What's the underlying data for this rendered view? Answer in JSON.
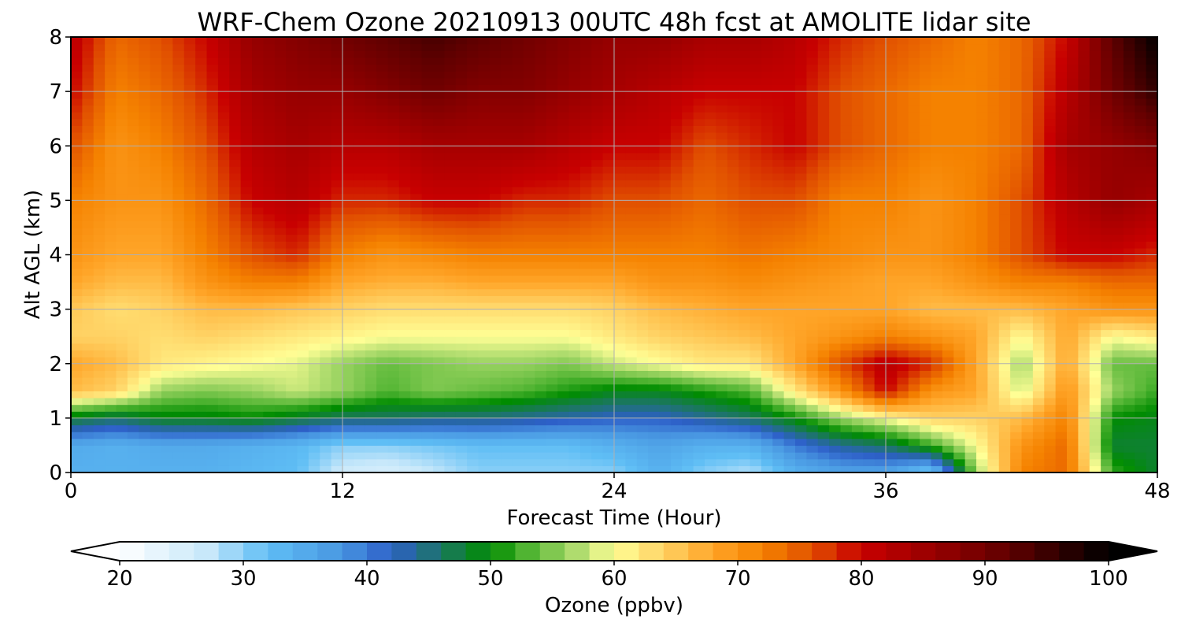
{
  "chart_data": {
    "type": "heatmap",
    "title": "WRF-Chem Ozone  20210913 00UTC 48h fcst at AMOLITE lidar site",
    "xlabel": "Forecast Time (Hour)",
    "ylabel": "Alt AGL (km)",
    "xlim": [
      0,
      48
    ],
    "ylim": [
      0,
      8
    ],
    "x_ticks": [
      "0",
      "12",
      "24",
      "36",
      "48"
    ],
    "y_ticks": [
      "0",
      "1",
      "2",
      "3",
      "4",
      "5",
      "6",
      "7",
      "8"
    ],
    "grid": true,
    "colorbar": {
      "label": "Ozone  (ppbv)",
      "range": [
        20,
        100
      ],
      "step": 2,
      "extend": "both",
      "ticks": [
        "20",
        "30",
        "40",
        "50",
        "60",
        "70",
        "80",
        "90",
        "100"
      ]
    },
    "x": [
      0,
      2,
      4,
      6,
      8,
      10,
      12,
      14,
      16,
      18,
      20,
      22,
      24,
      26,
      28,
      30,
      32,
      34,
      36,
      38,
      40,
      42,
      44,
      46,
      48
    ],
    "y": [
      0,
      0.5,
      1,
      1.5,
      2,
      2.5,
      3,
      3.5,
      4,
      5,
      6,
      7,
      8
    ],
    "z": [
      [
        34,
        34,
        34,
        34,
        33,
        32,
        26,
        25,
        27,
        30,
        30,
        30,
        30,
        34,
        30,
        28,
        34,
        36,
        36,
        30,
        56,
        72,
        74,
        52,
        48
      ],
      [
        35,
        34,
        35,
        35,
        34,
        33,
        30,
        30,
        31,
        32,
        32,
        32,
        34,
        36,
        34,
        34,
        40,
        44,
        46,
        52,
        60,
        70,
        74,
        48,
        48
      ],
      [
        48,
        46,
        49,
        49,
        50,
        48,
        46,
        46,
        45,
        45,
        44,
        43,
        42,
        42,
        44,
        46,
        50,
        56,
        60,
        64,
        64,
        66,
        72,
        50,
        49
      ],
      [
        66,
        64,
        56,
        55,
        56,
        58,
        56,
        53,
        55,
        54,
        53,
        51,
        49,
        49,
        51,
        53,
        62,
        70,
        80,
        70,
        68,
        58,
        70,
        56,
        52
      ],
      [
        68,
        66,
        62,
        61,
        60,
        59,
        56,
        54,
        55,
        56,
        56,
        55,
        58,
        60,
        62,
        62,
        68,
        76,
        82,
        78,
        68,
        56,
        68,
        54,
        54
      ],
      [
        64,
        64,
        63,
        64,
        63,
        62,
        61,
        60,
        60,
        60,
        60,
        60,
        62,
        64,
        65,
        66,
        68,
        70,
        72,
        70,
        68,
        60,
        68,
        60,
        62
      ],
      [
        65,
        63,
        64,
        66,
        66,
        65,
        64,
        63,
        63,
        63,
        63,
        63,
        64,
        66,
        67,
        68,
        68,
        68,
        68,
        66,
        66,
        66,
        68,
        70,
        70
      ],
      [
        68,
        66,
        66,
        70,
        72,
        72,
        68,
        67,
        67,
        68,
        68,
        68,
        68,
        70,
        70,
        71,
        70,
        69,
        68,
        68,
        70,
        72,
        72,
        74,
        74
      ],
      [
        70,
        68,
        68,
        72,
        76,
        78,
        72,
        70,
        71,
        72,
        72,
        72,
        72,
        72,
        72,
        73,
        72,
        71,
        70,
        70,
        72,
        76,
        80,
        80,
        78
      ],
      [
        72,
        70,
        70,
        74,
        80,
        82,
        78,
        78,
        80,
        80,
        78,
        78,
        76,
        76,
        74,
        76,
        76,
        72,
        72,
        70,
        72,
        76,
        82,
        86,
        84
      ],
      [
        76,
        70,
        72,
        76,
        82,
        84,
        82,
        82,
        84,
        84,
        84,
        82,
        80,
        80,
        76,
        78,
        80,
        76,
        74,
        72,
        72,
        74,
        84,
        86,
        88
      ],
      [
        80,
        72,
        74,
        78,
        84,
        86,
        86,
        88,
        90,
        88,
        88,
        86,
        84,
        82,
        80,
        80,
        80,
        76,
        74,
        72,
        72,
        74,
        82,
        90,
        96
      ],
      [
        82,
        74,
        76,
        80,
        86,
        88,
        90,
        92,
        94,
        92,
        90,
        88,
        86,
        86,
        84,
        84,
        82,
        78,
        76,
        74,
        72,
        74,
        80,
        92,
        100
      ]
    ]
  }
}
